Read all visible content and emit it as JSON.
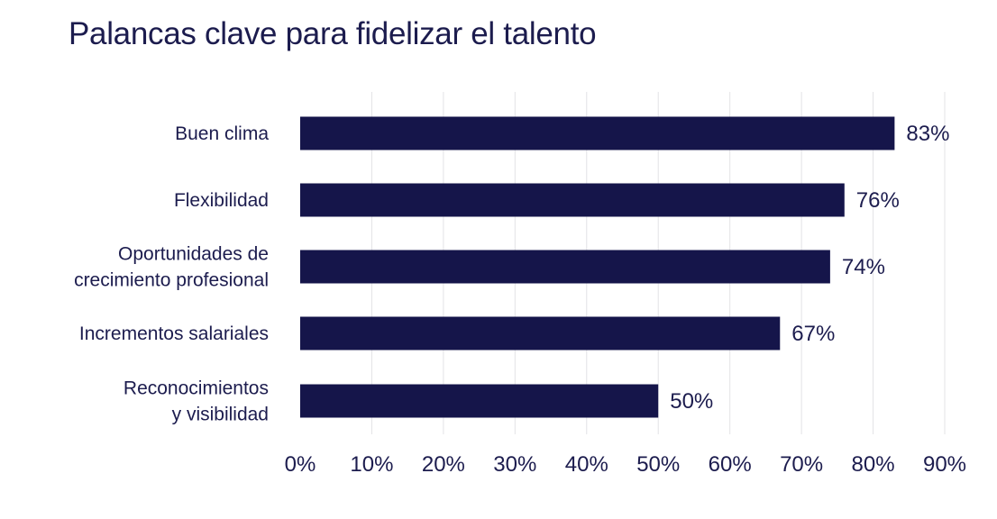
{
  "chart_data": {
    "type": "bar",
    "orientation": "horizontal",
    "title": "Palancas clave para fidelizar el talento",
    "categories": [
      "Buen clima",
      "Flexibilidad",
      "Oportunidades de crecimiento profesional",
      "Incrementos salariales",
      "Reconocimientos y visibilidad"
    ],
    "category_lines": [
      [
        "Buen clima"
      ],
      [
        "Flexibilidad"
      ],
      [
        "Oportunidades de",
        "crecimiento profesional"
      ],
      [
        "Incrementos salariales"
      ],
      [
        "Reconocimientos",
        "y visibilidad"
      ]
    ],
    "values": [
      83,
      76,
      74,
      67,
      50
    ],
    "value_labels": [
      "83%",
      "76%",
      "74%",
      "67%",
      "50%"
    ],
    "xlim": [
      0,
      90
    ],
    "x_ticks": [
      0,
      10,
      20,
      30,
      40,
      50,
      60,
      70,
      80,
      90
    ],
    "x_tick_labels": [
      "0%",
      "10%",
      "20%",
      "30%",
      "40%",
      "50%",
      "60%",
      "70%",
      "80%",
      "90%"
    ],
    "xlabel": "",
    "ylabel": "",
    "grid": true,
    "legend": "none",
    "colors": {
      "bar": "#15154a",
      "text": "#1c1c4e",
      "grid": "#e3e3e6"
    }
  }
}
